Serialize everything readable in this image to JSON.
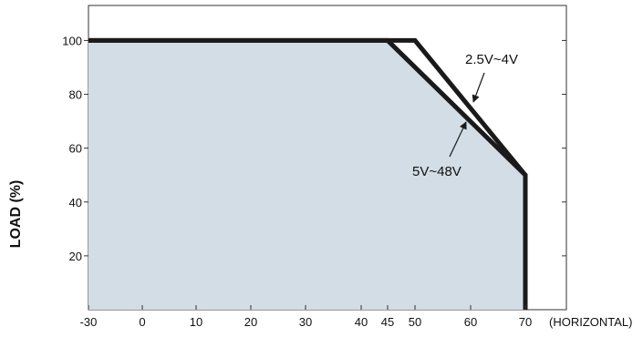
{
  "chart_data": {
    "type": "line",
    "title": "",
    "xlabel": "(HORIZONTAL)",
    "ylabel": "LOAD (%)",
    "xlim": [
      -30,
      77
    ],
    "ylim": [
      0,
      113
    ],
    "x_ticks": [
      -30,
      0,
      10,
      20,
      30,
      40,
      45,
      50,
      60,
      70
    ],
    "y_ticks": [
      20,
      40,
      60,
      80,
      100
    ],
    "grid": false,
    "colors": {
      "shaded_area": "#d2dde5",
      "lines": "#1a1a1a"
    },
    "series": [
      {
        "name": "5V~48V",
        "x": [
          -30,
          45,
          70,
          70
        ],
        "y": [
          100,
          100,
          50,
          0
        ],
        "filled": true
      },
      {
        "name": "2.5V~4V",
        "x": [
          -30,
          50,
          70,
          70
        ],
        "y": [
          100,
          100,
          50,
          0
        ],
        "filled": false
      }
    ],
    "annotations": [
      {
        "text": "2.5V~4V",
        "series": "2.5V~4V"
      },
      {
        "text": "5V~48V",
        "series": "5V~48V"
      }
    ]
  }
}
